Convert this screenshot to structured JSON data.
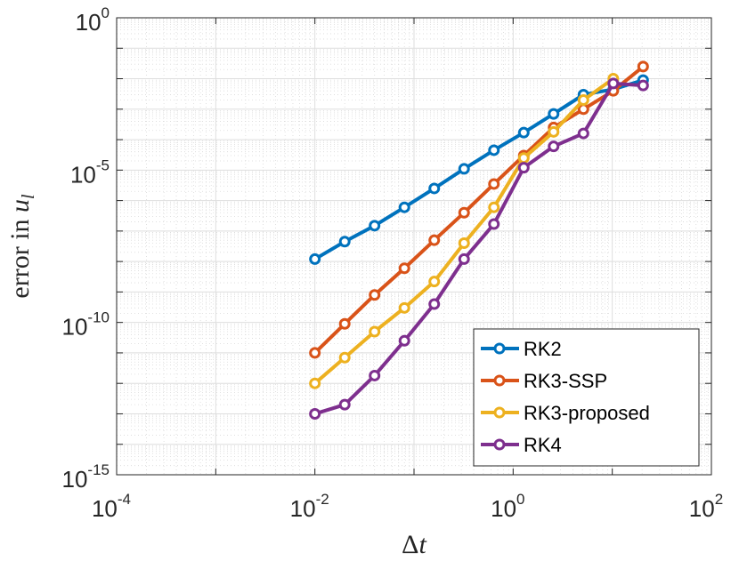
{
  "chart_data": {
    "type": "line",
    "xscale": "log",
    "yscale": "log",
    "xlim": [
      0.0001,
      100
    ],
    "ylim": [
      1e-15,
      1
    ],
    "grid": true,
    "legend_position": "bottom-right",
    "xlabel": "Δt",
    "ylabel_prefix": "error in ",
    "ylabel_symbol": "u",
    "ylabel_subscript": "l",
    "x_ticks": [
      {
        "base": "10",
        "exp": "-4"
      },
      {
        "base": "10",
        "exp": "-2"
      },
      {
        "base": "10",
        "exp": "0"
      },
      {
        "base": "10",
        "exp": "2"
      }
    ],
    "y_ticks": [
      {
        "base": "10",
        "exp": "-15"
      },
      {
        "base": "10",
        "exp": "-10"
      },
      {
        "base": "10",
        "exp": "-5"
      },
      {
        "base": "10",
        "exp": "0"
      }
    ],
    "x": [
      0.01,
      0.02,
      0.04,
      0.08,
      0.16,
      0.32,
      0.64,
      1.28,
      2.56,
      5.12,
      10.24,
      20.48
    ],
    "series": [
      {
        "name": "RK2",
        "color": "#0072BD",
        "values": [
          1.2e-08,
          4.5e-08,
          1.5e-07,
          6e-07,
          2.5e-06,
          1.1e-05,
          4.5e-05,
          0.00017,
          0.0007,
          0.003,
          0.0045,
          0.009
        ]
      },
      {
        "name": "RK3-SSP",
        "color": "#D95319",
        "values": [
          1e-11,
          9e-11,
          8e-10,
          6e-09,
          5e-08,
          4e-07,
          3.5e-06,
          3e-05,
          0.00025,
          0.001,
          0.004,
          0.025
        ]
      },
      {
        "name": "RK3-proposed",
        "color": "#EDB120",
        "values": [
          1e-12,
          7e-12,
          5e-11,
          3e-10,
          2.2e-09,
          4e-08,
          6e-07,
          2.5e-05,
          0.00018,
          0.002,
          0.01,
          null
        ]
      },
      {
        "name": "RK4",
        "color": "#7E2F8E",
        "values": [
          1e-13,
          2e-13,
          1.8e-12,
          2.5e-11,
          4e-10,
          1.2e-08,
          1.7e-07,
          1.2e-05,
          6e-05,
          0.00016,
          0.007,
          0.006
        ]
      }
    ]
  }
}
